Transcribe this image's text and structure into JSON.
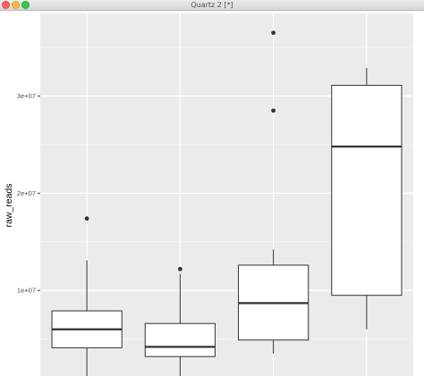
{
  "window": {
    "title": "Quartz 2 [*]"
  },
  "chart_data": {
    "type": "boxplot",
    "title": "",
    "xlabel": "",
    "ylabel": "raw_reads",
    "ylim": [
      1200000,
      38500000
    ],
    "yticks": [
      10000000,
      20000000,
      30000000
    ],
    "ytick_labels": [
      "1e+07",
      "2e+07",
      "3e+07"
    ],
    "grid": true,
    "legend": "none",
    "boxes": [
      {
        "lower_whisker": 500000,
        "q1": 4100000,
        "median": 6000000,
        "q3": 7900000,
        "upper_whisker": 13100000,
        "outliers": [
          17400000
        ]
      },
      {
        "lower_whisker": 500000,
        "q1": 3200000,
        "median": 4200000,
        "q3": 6600000,
        "upper_whisker": 11700000,
        "outliers": [
          12200000
        ]
      },
      {
        "lower_whisker": 3500000,
        "q1": 4900000,
        "median": 8700000,
        "q3": 12600000,
        "upper_whisker": 14200000,
        "outliers": [
          28500000,
          36500000
        ]
      },
      {
        "lower_whisker": 6000000,
        "q1": 9500000,
        "median": 24800000,
        "q3": 31100000,
        "upper_whisker": 32900000,
        "outliers": []
      }
    ],
    "colors": {
      "panel": "#ebebeb",
      "grid_major": "#ffffff",
      "box_fill": "#ffffff",
      "box_line": "#333333",
      "axis_text": "#4d4d4d"
    }
  }
}
